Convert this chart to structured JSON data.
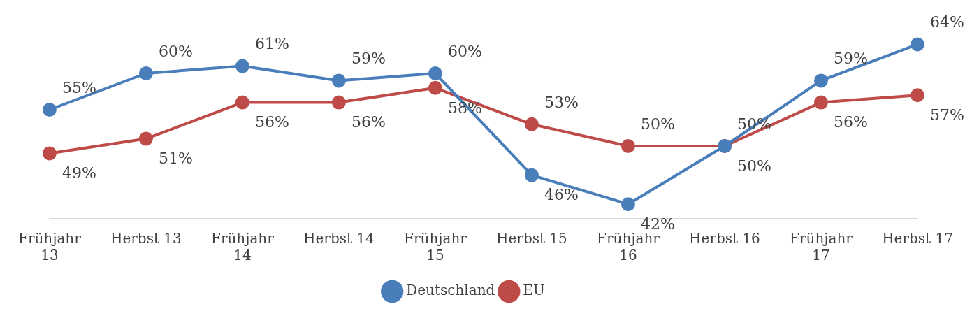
{
  "chart_data": {
    "type": "line",
    "categories": [
      "Frühjahr 13",
      "Herbst 13",
      "Frühjahr 14",
      "Herbst 14",
      "Frühjahr 15",
      "Herbst 15",
      "Frühjahr 16",
      "Herbst 16",
      "Frühjahr 17",
      "Herbst 17"
    ],
    "series": [
      {
        "name": "Deutschland",
        "color": "#4a7ebb",
        "values": [
          55,
          60,
          61,
          59,
          60,
          46,
          42,
          50,
          59,
          64
        ],
        "value_labels": [
          "55%",
          "60%",
          "61%",
          "59%",
          "60%",
          "46%",
          "42%",
          "50%",
          "59%",
          "64%"
        ]
      },
      {
        "name": "EU",
        "color": "#be4b48",
        "values": [
          49,
          51,
          56,
          56,
          58,
          53,
          50,
          50,
          56,
          57
        ],
        "value_labels": [
          "49%",
          "51%",
          "56%",
          "56%",
          "58%",
          "53%",
          "50%",
          "50%",
          "56%",
          "57%"
        ]
      }
    ],
    "tick_labels": "x",
    "grid": false,
    "legend": "bottom",
    "marker": "circle",
    "line_style": "solid"
  }
}
